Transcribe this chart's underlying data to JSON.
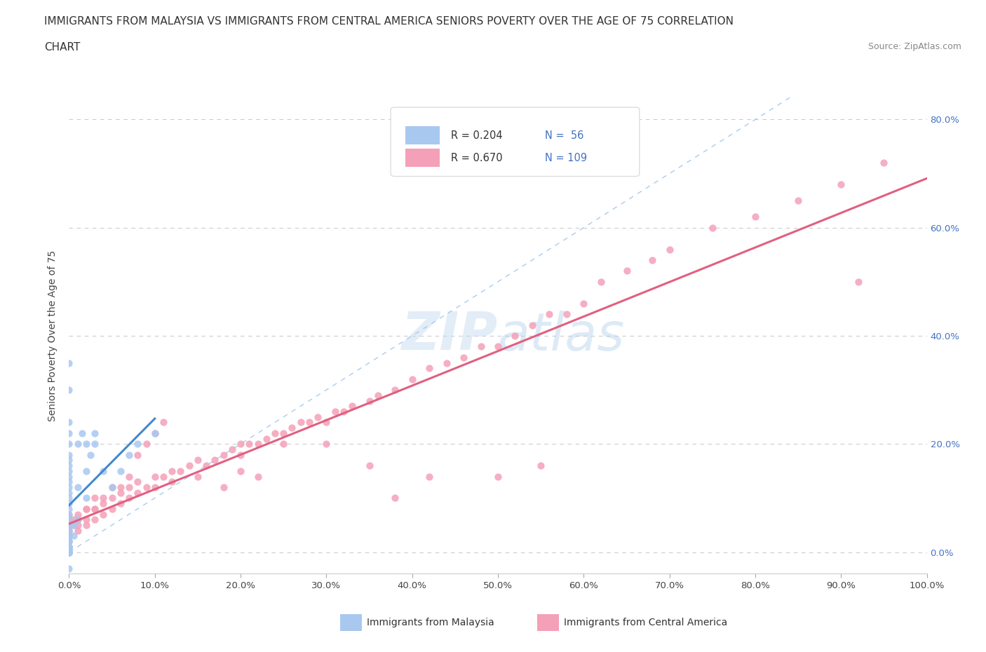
{
  "title_line1": "IMMIGRANTS FROM MALAYSIA VS IMMIGRANTS FROM CENTRAL AMERICA SENIORS POVERTY OVER THE AGE OF 75 CORRELATION",
  "title_line2": "CHART",
  "source_text": "Source: ZipAtlas.com",
  "ylabel_label": "Seniors Poverty Over the Age of 75",
  "legend_R_malaysia": "R = 0.204",
  "legend_N_malaysia": "N =  56",
  "legend_R_central": "R = 0.670",
  "legend_N_central": "N = 109",
  "malaysia_color": "#a8c8f0",
  "central_color": "#f4a0b8",
  "malaysia_line_color": "#4488cc",
  "central_line_color": "#e06080",
  "diag_line_color": "#aaccee",
  "watermark_color": "#c8ddf0",
  "background_color": "#ffffff",
  "xmin": 0.0,
  "xmax": 1.0,
  "ymin": -0.04,
  "ymax": 0.84,
  "malaysia_scatter_x": [
    0.0,
    0.0,
    0.0,
    0.0,
    0.0,
    0.0,
    0.0,
    0.0,
    0.0,
    0.0,
    0.0,
    0.0,
    0.0,
    0.0,
    0.0,
    0.0,
    0.0,
    0.0,
    0.0,
    0.0,
    0.0,
    0.0,
    0.0,
    0.0,
    0.0,
    0.0,
    0.0,
    0.0,
    0.0,
    0.0,
    0.0,
    0.0,
    0.0,
    0.0,
    0.0,
    0.0,
    0.0,
    0.0,
    0.005,
    0.005,
    0.01,
    0.01,
    0.01,
    0.015,
    0.02,
    0.02,
    0.02,
    0.025,
    0.03,
    0.03,
    0.04,
    0.05,
    0.06,
    0.07,
    0.08,
    0.1
  ],
  "malaysia_scatter_y": [
    0.0,
    0.0,
    0.0,
    0.0,
    0.0,
    0.0,
    0.0,
    0.0,
    0.0,
    0.005,
    0.01,
    0.01,
    0.01,
    0.02,
    0.02,
    0.03,
    0.03,
    0.04,
    0.05,
    0.06,
    0.07,
    0.08,
    0.09,
    0.1,
    0.11,
    0.12,
    0.13,
    0.14,
    0.15,
    0.16,
    0.17,
    0.18,
    0.2,
    0.22,
    0.24,
    0.3,
    0.35,
    -0.03,
    0.03,
    0.05,
    0.06,
    0.12,
    0.2,
    0.22,
    0.1,
    0.15,
    0.2,
    0.18,
    0.2,
    0.22,
    0.15,
    0.12,
    0.15,
    0.18,
    0.2,
    0.22
  ],
  "central_scatter_x": [
    0.0,
    0.0,
    0.0,
    0.0,
    0.0,
    0.0,
    0.0,
    0.0,
    0.0,
    0.0,
    0.005,
    0.01,
    0.01,
    0.02,
    0.02,
    0.03,
    0.03,
    0.04,
    0.04,
    0.05,
    0.05,
    0.06,
    0.06,
    0.07,
    0.07,
    0.08,
    0.08,
    0.09,
    0.1,
    0.1,
    0.11,
    0.12,
    0.12,
    0.13,
    0.14,
    0.15,
    0.15,
    0.16,
    0.17,
    0.18,
    0.19,
    0.2,
    0.2,
    0.21,
    0.22,
    0.23,
    0.24,
    0.25,
    0.26,
    0.27,
    0.28,
    0.29,
    0.3,
    0.31,
    0.32,
    0.33,
    0.35,
    0.36,
    0.38,
    0.4,
    0.42,
    0.44,
    0.46,
    0.48,
    0.5,
    0.52,
    0.54,
    0.56,
    0.58,
    0.6,
    0.62,
    0.65,
    0.68,
    0.7,
    0.75,
    0.8,
    0.85,
    0.9,
    0.92,
    0.95,
    0.38,
    0.42,
    0.3,
    0.35,
    0.2,
    0.25,
    0.5,
    0.55,
    0.18,
    0.22,
    0.08,
    0.09,
    0.1,
    0.11,
    0.06,
    0.07,
    0.04,
    0.05,
    0.03,
    0.03,
    0.02,
    0.02,
    0.01,
    0.01,
    0.005,
    0.0,
    0.0,
    0.0,
    0.0
  ],
  "central_scatter_y": [
    0.0,
    0.0,
    0.0,
    0.005,
    0.01,
    0.01,
    0.02,
    0.02,
    0.03,
    0.04,
    0.05,
    0.04,
    0.06,
    0.05,
    0.08,
    0.06,
    0.08,
    0.07,
    0.09,
    0.08,
    0.1,
    0.09,
    0.11,
    0.1,
    0.12,
    0.11,
    0.13,
    0.12,
    0.12,
    0.14,
    0.14,
    0.13,
    0.15,
    0.15,
    0.16,
    0.14,
    0.17,
    0.16,
    0.17,
    0.18,
    0.19,
    0.18,
    0.2,
    0.2,
    0.2,
    0.21,
    0.22,
    0.22,
    0.23,
    0.24,
    0.24,
    0.25,
    0.24,
    0.26,
    0.26,
    0.27,
    0.28,
    0.29,
    0.3,
    0.32,
    0.34,
    0.35,
    0.36,
    0.38,
    0.38,
    0.4,
    0.42,
    0.44,
    0.44,
    0.46,
    0.5,
    0.52,
    0.54,
    0.56,
    0.6,
    0.62,
    0.65,
    0.68,
    0.5,
    0.72,
    0.1,
    0.14,
    0.2,
    0.16,
    0.15,
    0.2,
    0.14,
    0.16,
    0.12,
    0.14,
    0.18,
    0.2,
    0.22,
    0.24,
    0.12,
    0.14,
    0.1,
    0.12,
    0.08,
    0.1,
    0.06,
    0.08,
    0.05,
    0.07,
    0.06,
    0.04,
    0.05,
    0.06,
    0.07
  ]
}
